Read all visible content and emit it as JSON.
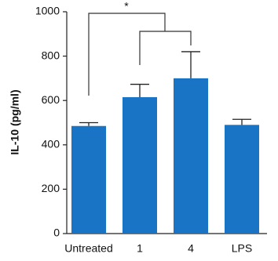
{
  "chart_data": {
    "type": "bar",
    "ylabel": "IL-10 (pg/ml)",
    "categories": [
      "Untreated",
      "1",
      "4",
      "LPS"
    ],
    "values": [
      485,
      615,
      700,
      490
    ],
    "errors": [
      15,
      58,
      120,
      25
    ],
    "color": "#1a74c6",
    "ylim": [
      0,
      1000
    ],
    "yticks": [
      0,
      200,
      400,
      600,
      800,
      1000
    ],
    "significance": "*"
  }
}
